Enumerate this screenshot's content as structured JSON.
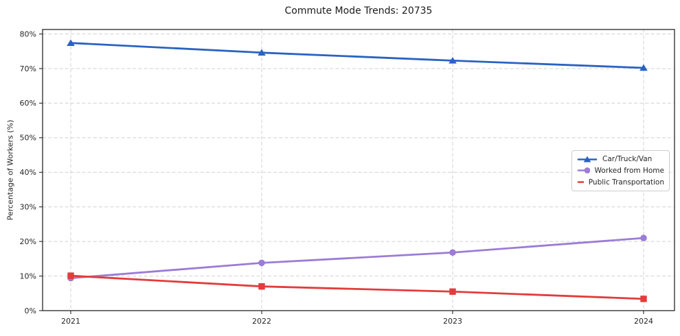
{
  "figure": {
    "background": "#ffffff",
    "axis_color": "#262626",
    "grid_color": "#cccccc"
  },
  "chart_data": {
    "type": "line",
    "title": "Commute Mode Trends: 20735",
    "xlabel": "",
    "ylabel": "Percentage of Workers (%)",
    "x": [
      2021,
      2022,
      2023,
      2024
    ],
    "xtick_labels": [
      "2021",
      "2022",
      "2023",
      "2024"
    ],
    "yticks": [
      0,
      10,
      20,
      30,
      40,
      50,
      60,
      70,
      80
    ],
    "ytick_labels": [
      "0%",
      "10%",
      "20%",
      "30%",
      "40%",
      "50%",
      "60%",
      "70%",
      "80%"
    ],
    "ylim": [
      0,
      81.3
    ],
    "grid": true,
    "grid_style": "dashed",
    "legend_position": "center-right",
    "series": [
      {
        "name": "Car/Truck/Van",
        "values": [
          77.4,
          74.6,
          72.3,
          70.2
        ],
        "color": "#2a62c3",
        "marker": "triangle"
      },
      {
        "name": "Worked from Home",
        "values": [
          9.4,
          13.8,
          16.8,
          21.0
        ],
        "color": "#9b7cd6",
        "marker": "circle"
      },
      {
        "name": "Public Transportation",
        "values": [
          10.1,
          7.0,
          5.5,
          3.4
        ],
        "color": "#e23c3c",
        "marker": "square"
      }
    ]
  }
}
